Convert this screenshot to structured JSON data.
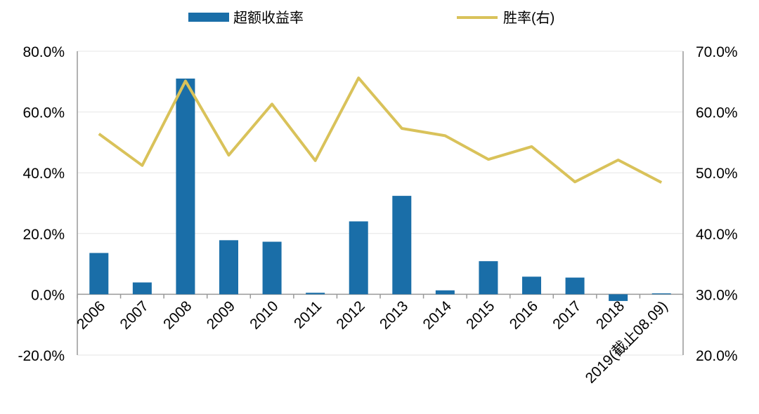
{
  "chart_data": {
    "type": "bar",
    "title": "",
    "categories": [
      "2006",
      "2007",
      "2008",
      "2009",
      "2010",
      "2011",
      "2012",
      "2013",
      "2014",
      "2015",
      "2016",
      "2017",
      "2018",
      "2019(截止08.09)"
    ],
    "series": [
      {
        "name": "超额收益率",
        "type": "bar",
        "axis": "left",
        "color": "#1a6ea8",
        "values": [
          13.6,
          3.9,
          71.0,
          17.8,
          17.3,
          0.5,
          24.0,
          32.4,
          1.3,
          10.9,
          5.8,
          5.5,
          -2.2,
          0.3
        ]
      },
      {
        "name": "胜率(右)",
        "type": "line",
        "axis": "right",
        "color": "#d9c25a",
        "values": [
          56.4,
          51.2,
          65.1,
          52.9,
          61.3,
          52.0,
          65.6,
          57.3,
          56.1,
          52.2,
          54.3,
          48.5,
          52.1,
          48.4
        ]
      }
    ],
    "y_left": {
      "min": -20,
      "max": 80,
      "ticks": [
        "-20.0%",
        "0.0%",
        "20.0%",
        "40.0%",
        "60.0%",
        "80.0%"
      ]
    },
    "y_right": {
      "min": 20,
      "max": 70,
      "ticks": [
        "20.0%",
        "30.0%",
        "40.0%",
        "50.0%",
        "60.0%",
        "70.0%"
      ]
    },
    "grid": true,
    "legend": "top-center"
  }
}
